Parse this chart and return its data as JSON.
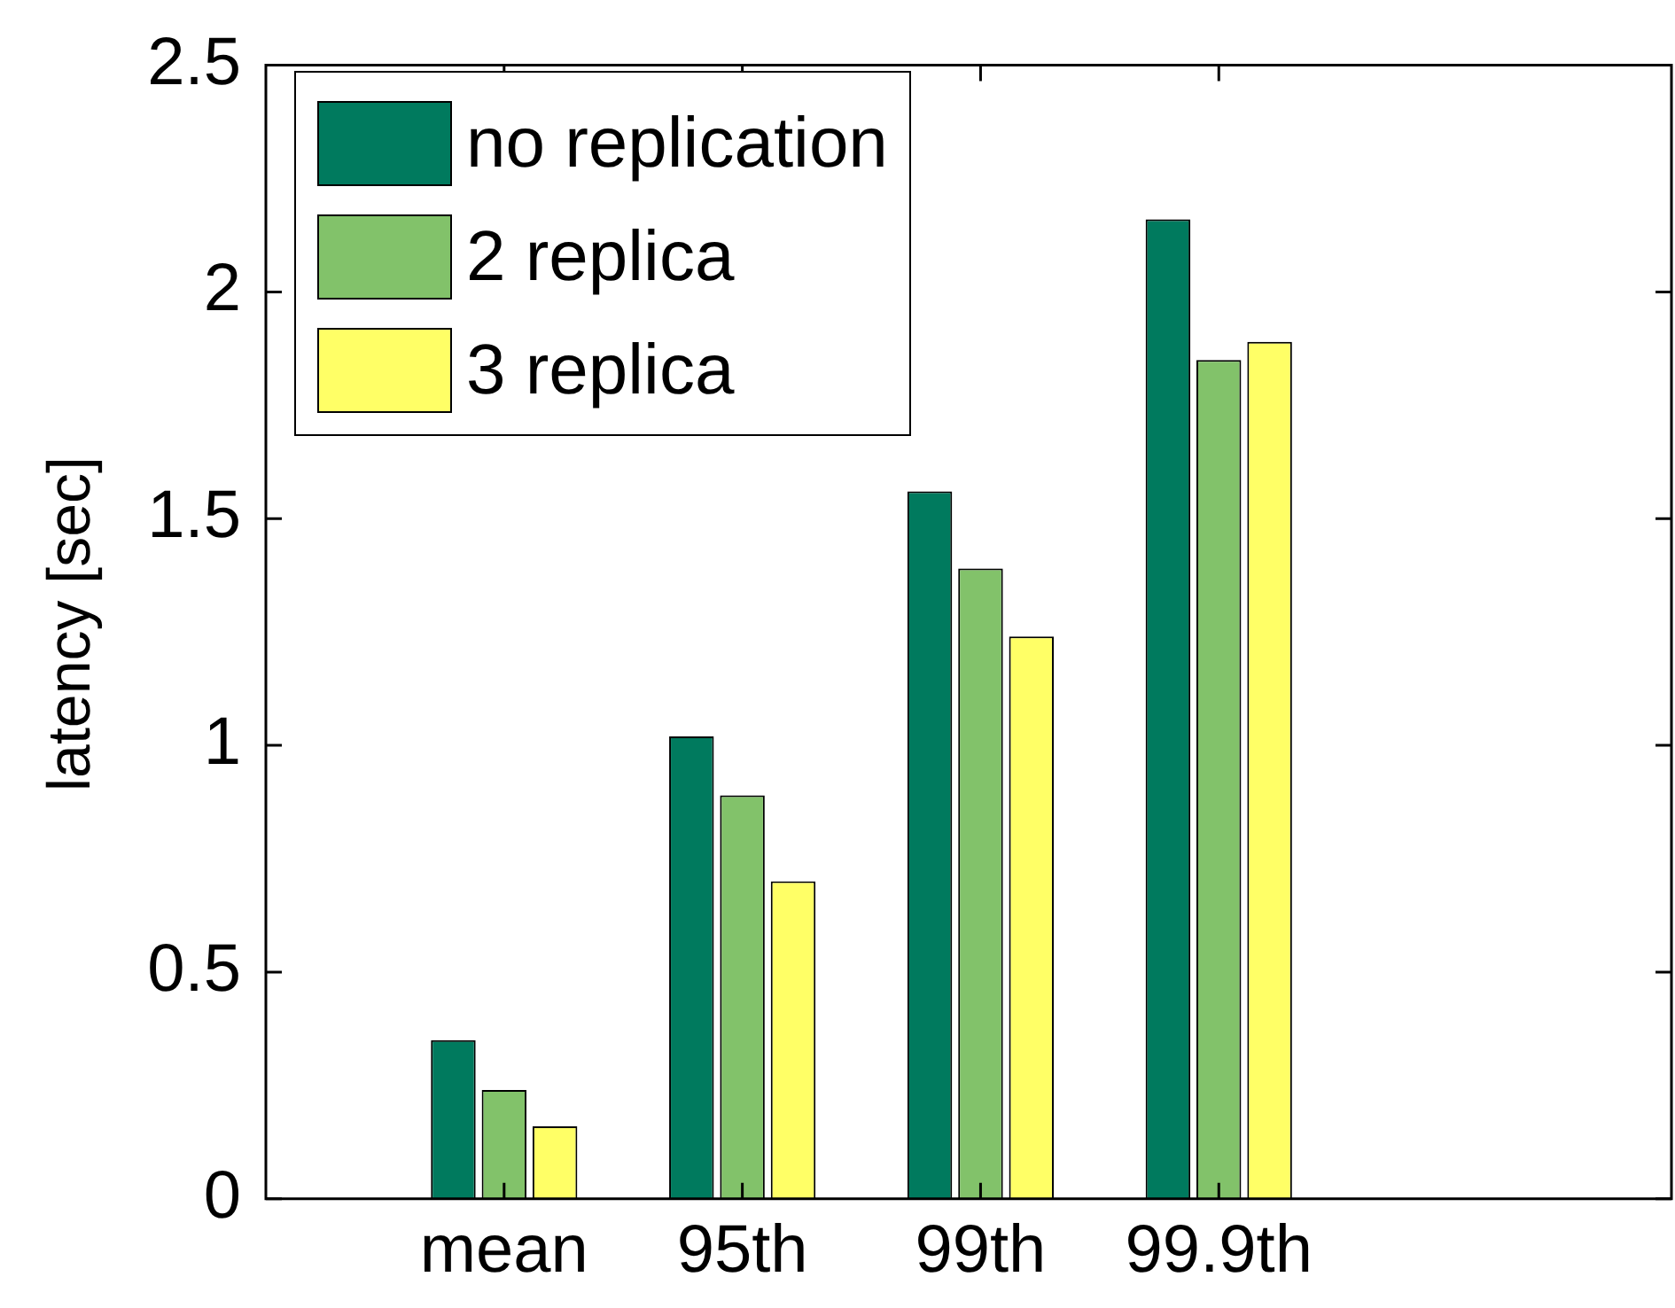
{
  "chart_data": {
    "type": "bar",
    "ylabel": "latency [sec]",
    "categories": [
      "mean",
      "95th",
      "99th",
      "99.9th"
    ],
    "series": [
      {
        "name": "no replication",
        "color": "#007a5e",
        "values": [
          0.35,
          1.02,
          1.56,
          2.16
        ]
      },
      {
        "name": "2 replica",
        "color": "#82c26a",
        "values": [
          0.24,
          0.89,
          1.39,
          1.85
        ]
      },
      {
        "name": "3 replica",
        "color": "#ffff66",
        "values": [
          0.16,
          0.7,
          1.24,
          1.89
        ]
      }
    ],
    "ylim": [
      0,
      2.5
    ],
    "yticks": [
      0,
      0.5,
      1,
      1.5,
      2,
      2.5
    ],
    "grid": false,
    "legend": "top left"
  }
}
